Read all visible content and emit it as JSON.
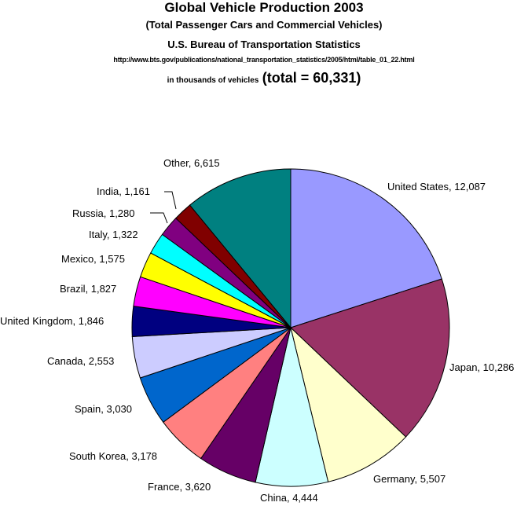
{
  "header": {
    "title": "Global Vehicle Production 2003",
    "subtitle": "(Total Passenger Cars and Commercial Vehicles)",
    "source": "U.S. Bureau of Transportation Statistics",
    "url": "http://www.bts.gov/publications/national_transportation_statistics/2005/html/table_01_22.html",
    "units": "in thousands of vehicles",
    "total": "(total = 60,331)"
  },
  "chart_data": {
    "type": "pie",
    "title": "Global Vehicle Production 2003",
    "total": 60331,
    "start_angle_deg": 0,
    "direction": "clockwise",
    "slices": [
      {
        "name": "United States",
        "value": 12087,
        "label": "United States, 12,087",
        "color": "#9999ff"
      },
      {
        "name": "Japan",
        "value": 10286,
        "label": "Japan, 10,286",
        "color": "#993366"
      },
      {
        "name": "Germany",
        "value": 5507,
        "label": "Germany, 5,507",
        "color": "#ffffcc"
      },
      {
        "name": "China",
        "value": 4444,
        "label": "China, 4,444",
        "color": "#ccffff"
      },
      {
        "name": "France",
        "value": 3620,
        "label": "France, 3,620",
        "color": "#660066"
      },
      {
        "name": "South Korea",
        "value": 3178,
        "label": "South Korea, 3,178",
        "color": "#ff8080"
      },
      {
        "name": "Spain",
        "value": 3030,
        "label": "Spain, 3,030",
        "color": "#0066cc"
      },
      {
        "name": "Canada",
        "value": 2553,
        "label": "Canada, 2,553",
        "color": "#ccccff"
      },
      {
        "name": "United Kingdom",
        "value": 1846,
        "label": "United Kingdom, 1,846",
        "color": "#000080"
      },
      {
        "name": "Brazil",
        "value": 1827,
        "label": "Brazil, 1,827",
        "color": "#ff00ff"
      },
      {
        "name": "Mexico",
        "value": 1575,
        "label": "Mexico, 1,575",
        "color": "#ffff00"
      },
      {
        "name": "Italy",
        "value": 1322,
        "label": "Italy, 1,322",
        "color": "#00ffff"
      },
      {
        "name": "Russia",
        "value": 1280,
        "label": "Russia, 1,280",
        "color": "#800080"
      },
      {
        "name": "India",
        "value": 1161,
        "label": "India, 1,161",
        "color": "#800000"
      },
      {
        "name": "Other",
        "value": 6615,
        "label": "Other, 6,615",
        "color": "#008080"
      }
    ]
  }
}
